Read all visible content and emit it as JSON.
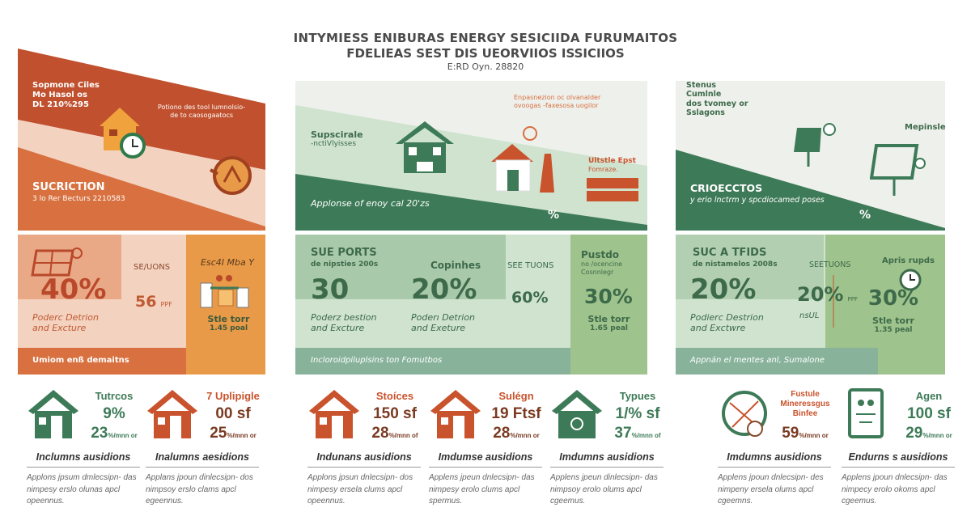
{
  "header": {
    "title_line1": "INTYMIESS ENIBURAS ENERGY SESICIIDA FURUMAITOS",
    "title_line2": "FDELIEAS SEST DIS UEORVIIOS ISSICIIOS",
    "subtitle": "E:RD Oyn. 28820"
  },
  "colors": {
    "orange_dark": "#c0502e",
    "orange": "#d8703f",
    "peach": "#f3d2bf",
    "amber": "#e89a48",
    "green_dark": "#3d7a57",
    "green_light": "#cfe3cf",
    "green_mid": "#9fc38c"
  },
  "left_panel": {
    "intro": [
      "Sopmone Ciles",
      "Mo Hasol os",
      "DL 210%295"
    ],
    "note": [
      "Potiono des tool lumnolsio-",
      "de to caosogaatocs"
    ],
    "heading": "SUCRICTION",
    "subheading": "3 lo Rer Becturs 2210583",
    "stat_main": "40%",
    "stat_main_caption": [
      "Poderc Detrion",
      "and Excture"
    ],
    "stat_label": "SE/UONS",
    "stat_value": "56",
    "stat_unit": "PPF",
    "side_title": "Esc4I Mba  Y",
    "side_caption": [
      "Stle torr",
      "1.45 poal"
    ],
    "footer": "Umiom enß demaitns"
  },
  "middle_panel": {
    "intro": [
      "Supscirale",
      "-nctiVlyisses"
    ],
    "note": [
      "Enpasnezion oc olvanalder",
      "ovoogas -faxesosa uogilor"
    ],
    "side_note": [
      "Ultstle Epst",
      "Fomraze."
    ],
    "banner": "Applonse of enoy cal 20'zs",
    "percent_mark": "%",
    "block1_title": "SUE PORTS",
    "block1_sub": "de nipsties 200s",
    "block1_value": "30",
    "block1_caption": [
      "Poderz bestion",
      "and Excture"
    ],
    "block2_title": "Copinhes",
    "block2_value": "20%",
    "block2_caption": [
      "Poderı Detrion",
      "and Exeture"
    ],
    "block3_title": "SEE TUONS",
    "block3_value": "60%",
    "side_title": "Pustdo",
    "side_sub": [
      "no /ocencine",
      "Cosnnlegr"
    ],
    "side_value": "30%",
    "side_caption": [
      "Stle torr",
      "1.65 peal"
    ],
    "footer": "Incloroidpiluplsins ton Fomutbos"
  },
  "right_panel": {
    "intro": [
      "Stenus",
      "Cumlnle",
      "dos tvomey or",
      "Sslagons"
    ],
    "label": "Mepinsle",
    "heading": "CRIOECCTOS",
    "subheading": "y erio lnctrm y spcdiocamed poses",
    "percent_mark": "%",
    "block1_title": "SUC A TFIDS",
    "block1_sub": "de nistamelos 2008s",
    "block1_value": "20%",
    "block1_caption": [
      "Podierc Destrion",
      "and Exctwre"
    ],
    "block2_title": "SEETUONS",
    "block2_value": "20%",
    "block2_unit": "PPF",
    "block2_caption": "nsUL",
    "side_title": "Apris rupds",
    "side_value": "30%",
    "side_caption": [
      "Stle torr",
      "1.35 peal"
    ],
    "footer": "Appnán el mentes anl, Sumalone"
  },
  "cards": [
    {
      "label": "Tutrcos",
      "v1": "9%",
      "v2": "23",
      "unit": "%/mnn or",
      "caption": "Inclumns ausidions",
      "desc": "Applons jpsum dmlecsipn- das nimpesy erslo olunas apcl opeennus.",
      "icon": "house-icon",
      "color": "#3d7a57"
    },
    {
      "label": "7 Uplipigle",
      "v1": "00 sf",
      "v2": "25",
      "unit": "%/mnn or",
      "caption": "Inalumns aesidions",
      "desc": "Applans jpoun dinlecsipn- dos nimpsoy erslo clams apcl egeennus.",
      "icon": "house-icon",
      "color": "#c9532c"
    },
    {
      "label": "Stoíces",
      "v1": "150 sf",
      "v2": "28",
      "unit": "%/mnn of",
      "caption": "Indunans ausidions",
      "desc": "Applons jpsun dnlecsipn- dos nimpesy ersela clums apcl opeennus.",
      "icon": "house-icon",
      "color": "#c9532c"
    },
    {
      "label": "Sulégn",
      "v1": "19 Ftsf",
      "v2": "28",
      "unit": "%/mnn or",
      "caption": "Imdumse ausidions",
      "desc": "Applens jpeun dnlecsipn- das nimpesy erolo clums apcl spermus.",
      "icon": "house-icon",
      "color": "#c9532c"
    },
    {
      "label": "Typues",
      "v1": "1/% sf",
      "v2": "37",
      "unit": "%/mnn of",
      "caption": "Imdumns ausidions",
      "desc": "Applens jpeun dinlecsipn- das nimpsoy erolo olums apcl cgeemus.",
      "icon": "house-sun-icon",
      "color": "#3d7a57"
    },
    {
      "label": "Fustule Mineressgus Binfee",
      "v1": "",
      "v2": "59",
      "unit": "%/mnn or",
      "caption": "Imdumns ausidions",
      "desc": "Applens jpoun dnlecsipn- des nimpeny ersela olums apcl cgeemns.",
      "icon": "cycle-icon",
      "color": "#c9532c"
    },
    {
      "label": "Agen",
      "v1": "100 sf",
      "v2": "29",
      "unit": "%/mnn or",
      "caption": "Endurns s ausidions",
      "desc": "Applens jpoun dnlecsipn- das nimpecy erolo okoms apcl cgeemus.",
      "icon": "tablet-icon",
      "color": "#3d7a57"
    }
  ]
}
